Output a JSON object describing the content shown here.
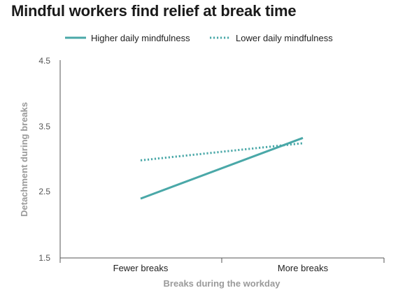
{
  "chart_data": {
    "type": "line",
    "title": "Mindful workers find relief at break time",
    "xlabel": "Breaks during the workday",
    "ylabel": "Detachment during breaks",
    "categories": [
      "Fewer breaks",
      "More breaks"
    ],
    "ylim": [
      1.5,
      4.5
    ],
    "yticks": [
      "4.5",
      "3.5",
      "2.5",
      "1.5"
    ],
    "grid": false,
    "legend_position": "top-left",
    "series": [
      {
        "name": "Higher daily mindfulness",
        "values": [
          2.4,
          3.32
        ],
        "style": "solid",
        "color": "#4aa8a8"
      },
      {
        "name": "Lower daily mindfulness",
        "values": [
          2.98,
          3.24
        ],
        "style": "dotted",
        "color": "#4aa8a8"
      }
    ]
  }
}
